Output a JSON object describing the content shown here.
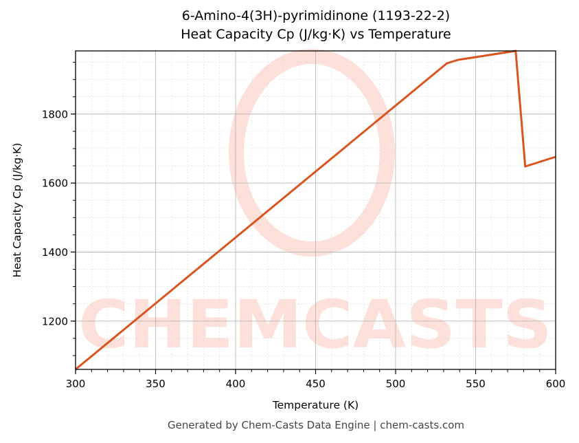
{
  "title": {
    "line1": "6-Amino-4(3H)-pyrimidinone (1193-22-2)",
    "line2": "Heat Capacity Cp (J/kg·K) vs Temperature"
  },
  "footer": "Generated by Chem-Casts Data Engine | chem-casts.com",
  "watermark": "CHEMCASTS",
  "colors": {
    "line": "#d9541e",
    "watermark": "#fde0da",
    "grid_major": "#b0b0b0",
    "grid_minor": "#dddddd"
  },
  "chart_data": {
    "type": "line",
    "title": "6-Amino-4(3H)-pyrimidinone (1193-22-2) Heat Capacity Cp (J/kg·K) vs Temperature",
    "xlabel": "Temperature (K)",
    "ylabel": "Heat Capacity Cp (J/kg·K)",
    "xlim": [
      300,
      600
    ],
    "ylim": [
      1060,
      1983
    ],
    "xticks": [
      300,
      350,
      400,
      450,
      500,
      550,
      600
    ],
    "yticks": [
      1200,
      1400,
      1600,
      1800
    ],
    "grid": true,
    "legend": null,
    "series": [
      {
        "name": "Cp",
        "x": [
          300,
          532,
          539,
          575,
          581,
          600
        ],
        "y": [
          1060,
          1947,
          1957,
          1983,
          1648,
          1676
        ]
      }
    ]
  }
}
